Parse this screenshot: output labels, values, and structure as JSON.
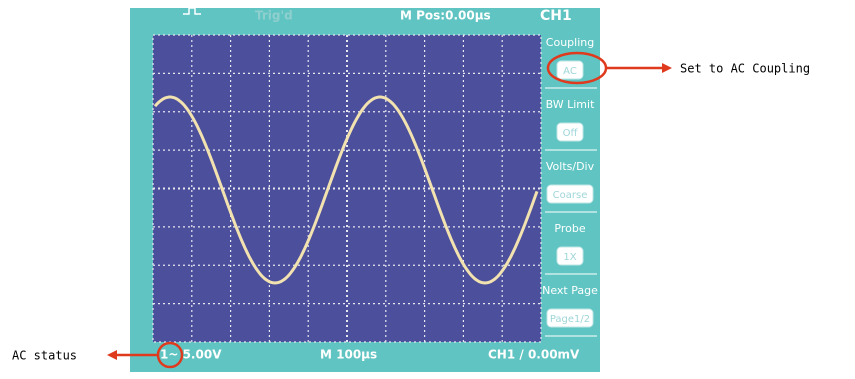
{
  "screen": {
    "top_bar": {
      "trigger": "Trig'd",
      "position": "M Pos:0.00μs",
      "channel": "CH1"
    },
    "menu": [
      {
        "label": "Coupling",
        "button": "AC"
      },
      {
        "label": "BW Limit",
        "button": "Off"
      },
      {
        "label": "Volts/Div",
        "button": "Coarse"
      },
      {
        "label": "Probe",
        "button": "1X"
      },
      {
        "label": "Next Page",
        "button": "Page1/2"
      }
    ],
    "status_bar": {
      "channel_scale": "1~ 5.00V",
      "time_base": "M 100μs",
      "trigger": "CH1 / 0.00mV"
    }
  },
  "annotations": {
    "coupling": "Set to AC Coupling",
    "status": "AC status"
  }
}
